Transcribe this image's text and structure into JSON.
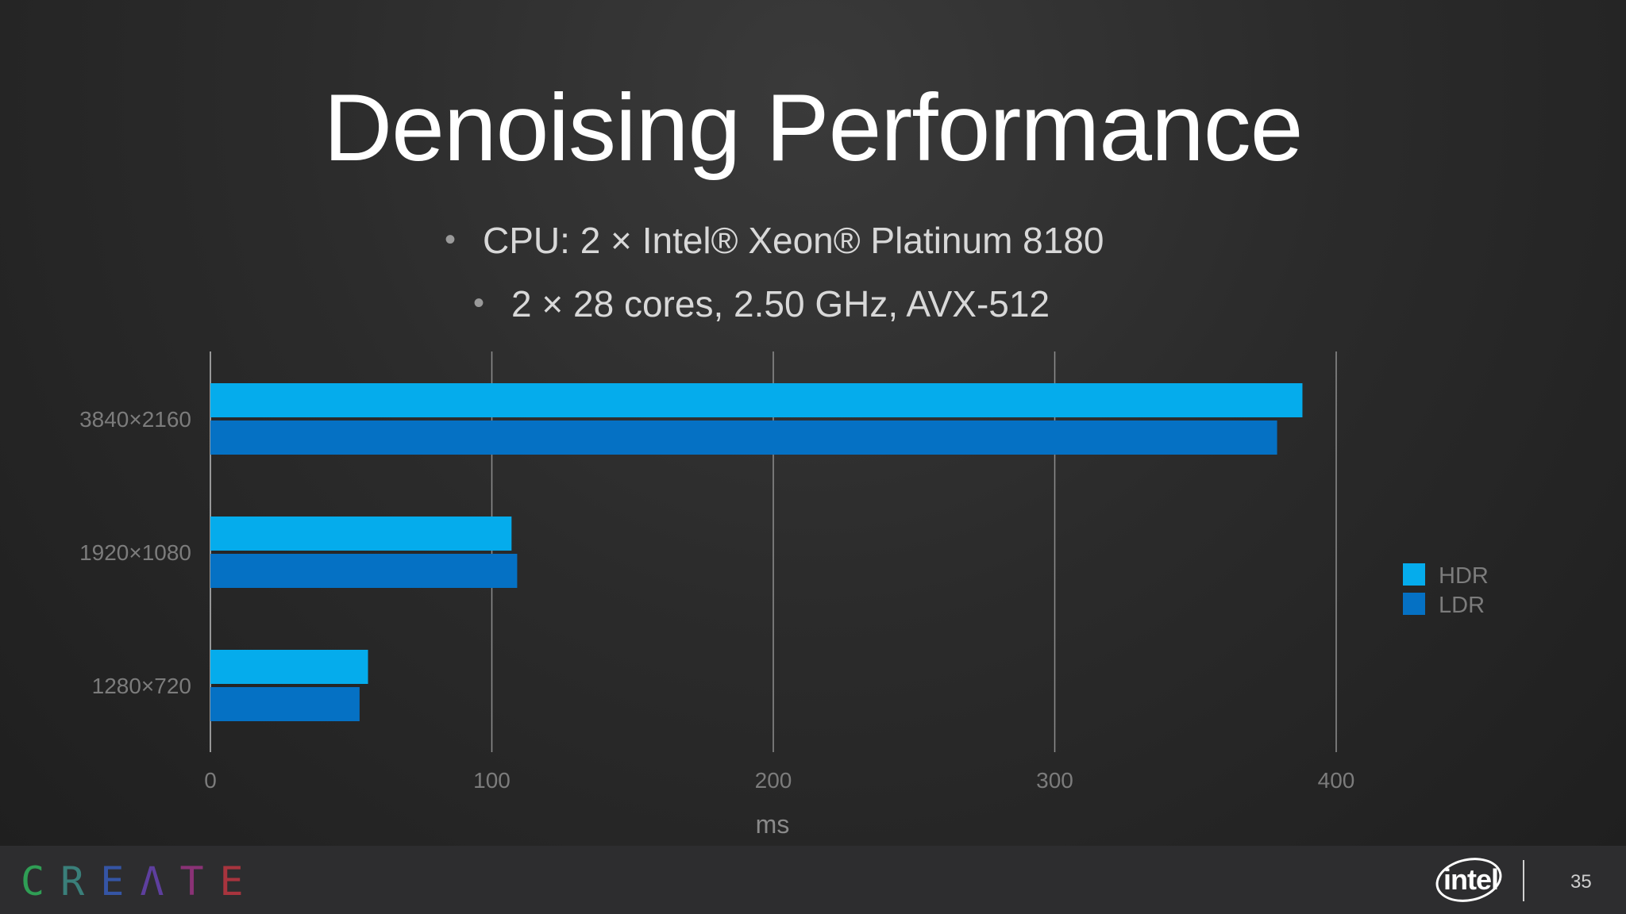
{
  "slide": {
    "title": "Denoising Performance",
    "bullet1": "CPU: 2 × Intel® Xeon® Platinum 8180",
    "bullet2": "2 × 28 cores, 2.50 GHz, AVX-512",
    "page_number": "35"
  },
  "footer": {
    "create_logo_letters": [
      "C",
      "R",
      "E",
      "Λ",
      "T",
      "E"
    ],
    "intel_logo": "intel"
  },
  "chart_data": {
    "type": "bar",
    "orientation": "horizontal",
    "title": "",
    "xlabel": "ms",
    "ylabel": "",
    "xlim": [
      0,
      400
    ],
    "xticks": [
      0,
      100,
      200,
      300,
      400
    ],
    "categories": [
      "3840×2160",
      "1920×1080",
      "1280×720"
    ],
    "series": [
      {
        "name": "HDR",
        "color": "#05acec",
        "values": [
          388,
          107,
          56
        ]
      },
      {
        "name": "LDR",
        "color": "#0571c4",
        "values": [
          379,
          109,
          53
        ]
      }
    ],
    "grid": "vertical",
    "legend_position": "right"
  }
}
